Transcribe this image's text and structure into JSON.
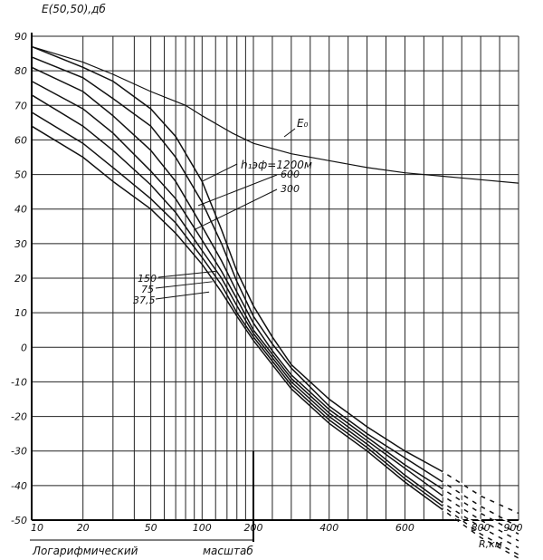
{
  "chart_data": {
    "type": "line",
    "ylabel": "E(50,50),дб",
    "xlabel": "R,км",
    "scale_note_left": "Логарифмический",
    "scale_note_right": "масштаб",
    "ylim": [
      -50,
      90
    ],
    "yticks": [
      "90",
      "80",
      "70",
      "60",
      "50",
      "40",
      "30",
      "20",
      "10",
      "0",
      "-10",
      "-20",
      "-30",
      "-40",
      "-50"
    ],
    "xticks": [
      "10",
      "20",
      "50",
      "100",
      "200",
      "400",
      "600",
      "800",
      "900"
    ],
    "x_axis_note": "logarithmic from 10 to 200 km, linear from 200 to 900 km",
    "grid": true,
    "annotations": {
      "param_label": "h₁эф=1200м",
      "free_space_label": "E₀"
    },
    "series": [
      {
        "name": "E₀",
        "x": [
          10,
          20,
          30,
          50,
          80,
          100,
          150,
          200,
          300,
          400,
          500,
          600,
          700,
          800,
          900
        ],
        "y": [
          87,
          82.5,
          79,
          74,
          70,
          67,
          62,
          59,
          56,
          54,
          52,
          50.5,
          49.5,
          48.5,
          47.5
        ]
      },
      {
        "name": "1200",
        "x": [
          10,
          20,
          30,
          50,
          70,
          100,
          130,
          160,
          200,
          250,
          300,
          400,
          500,
          600,
          700,
          800,
          900
        ],
        "y": [
          87,
          81,
          77,
          69,
          61,
          48,
          34,
          22,
          12,
          3,
          -5,
          -15,
          -23,
          -30,
          -36,
          -43,
          -48
        ]
      },
      {
        "name": "600",
        "x": [
          10,
          20,
          30,
          50,
          70,
          100,
          130,
          160,
          200,
          250,
          300,
          400,
          500,
          600,
          700,
          800,
          900
        ],
        "y": [
          84,
          78,
          72,
          64,
          55,
          42,
          30,
          19,
          9,
          1,
          -6,
          -17,
          -25,
          -32,
          -39,
          -46,
          -52
        ]
      },
      {
        "name": "300",
        "x": [
          10,
          20,
          30,
          50,
          70,
          100,
          130,
          160,
          200,
          250,
          300,
          400,
          500,
          600,
          700,
          800,
          900
        ],
        "y": [
          81,
          74,
          67,
          57,
          48,
          35,
          25,
          16,
          7,
          -1,
          -8,
          -18,
          -26,
          -34,
          -41,
          -48,
          -54
        ]
      },
      {
        "name": "150",
        "x": [
          10,
          20,
          30,
          50,
          70,
          100,
          130,
          160,
          200,
          250,
          300,
          400,
          500,
          600,
          700,
          800,
          900
        ],
        "y": [
          77,
          69,
          62,
          51,
          43,
          31,
          22,
          14,
          5,
          -2,
          -9,
          -19,
          -27,
          -35,
          -43,
          -50,
          -56
        ]
      },
      {
        "name": "75",
        "x": [
          10,
          20,
          30,
          50,
          70,
          100,
          130,
          160,
          200,
          250,
          300,
          400,
          500,
          600,
          700,
          800,
          900
        ],
        "y": [
          73,
          64,
          57,
          47,
          39,
          28,
          20,
          12,
          4,
          -3,
          -10,
          -20,
          -28,
          -37,
          -45,
          -52,
          -58
        ]
      },
      {
        "name": "37,5",
        "x": [
          10,
          20,
          30,
          50,
          70,
          100,
          130,
          160,
          200,
          250,
          300,
          400,
          500,
          600,
          700,
          800,
          900
        ],
        "y": [
          68,
          59,
          52,
          43,
          36,
          26,
          18,
          10,
          3,
          -4,
          -11,
          -21,
          -29,
          -38,
          -46,
          -54,
          -60
        ]
      },
      {
        "name": "",
        "x": [
          10,
          20,
          30,
          50,
          70,
          100,
          130,
          160,
          200,
          250,
          300,
          400,
          500,
          600,
          700,
          800,
          900
        ],
        "y": [
          64,
          55,
          48,
          40,
          33,
          24,
          16,
          9,
          2,
          -5,
          -12,
          -22,
          -30,
          -39,
          -47,
          -55,
          -61
        ]
      }
    ],
    "series_labels": [
      "600",
      "300",
      "150",
      "75",
      "37,5"
    ]
  }
}
